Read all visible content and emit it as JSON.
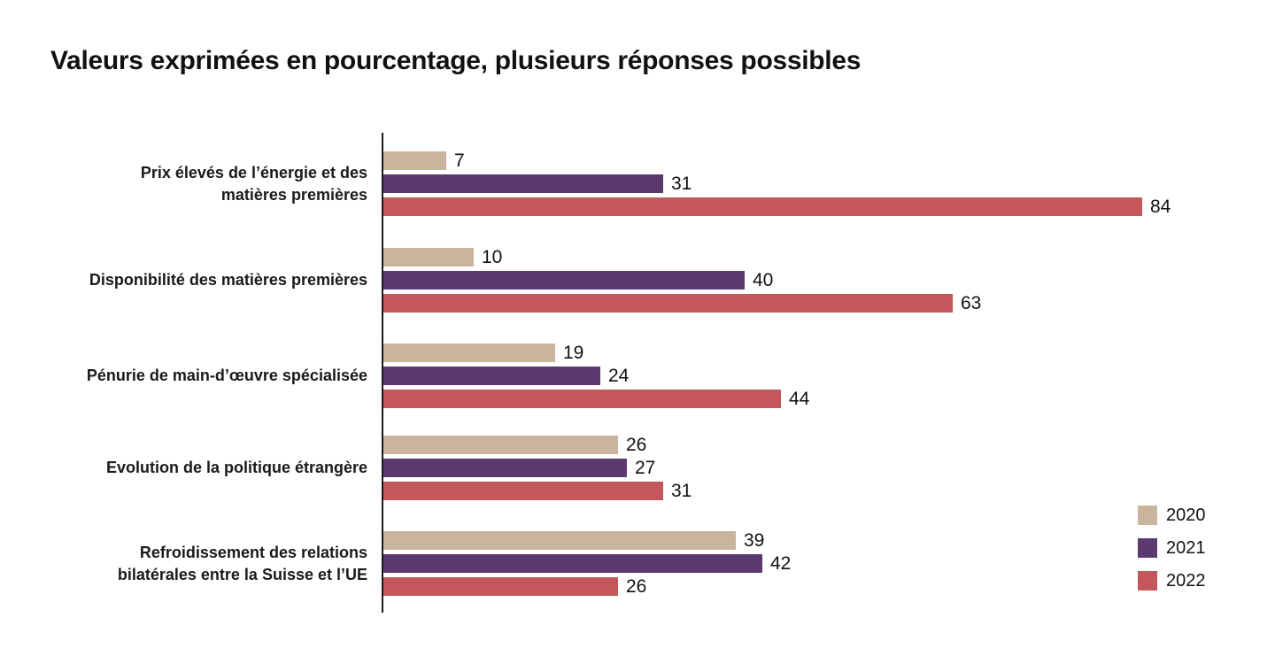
{
  "title": "Valeurs exprimées en pourcentage, plusieurs réponses possibles",
  "colors": {
    "series2020": "#C9B49D",
    "series2021": "#5B3A70",
    "series2022": "#C4575C",
    "axis": "#1A1A1A",
    "text": "#111111"
  },
  "legend": {
    "position": "bottom-right",
    "items": [
      {
        "label": "2020",
        "color": "#C9B49D"
      },
      {
        "label": "2021",
        "color": "#5B3A70"
      },
      {
        "label": "2022",
        "color": "#C4575C"
      }
    ]
  },
  "chart_data": {
    "type": "bar",
    "orientation": "horizontal",
    "title": "Valeurs exprimées en pourcentage, plusieurs réponses possibles",
    "unit": "percent",
    "grid": false,
    "data_labels": true,
    "legend_position": "bottom-right",
    "xlim": [
      0,
      100
    ],
    "categories": [
      "Prix élevés de l’énergie et des matières premières",
      "Disponibilité des matières premières",
      "Pénurie de main-d’œuvre spécialisée",
      "Evolution de la politique étrangère",
      "Refroidissement des relations bilatérales entre la Suisse et l’UE"
    ],
    "category_lines": [
      [
        "Prix élevés de l’énergie et des",
        "matières premières"
      ],
      [
        "Disponibilité des matières premières"
      ],
      [
        "Pénurie de main-d’œuvre spécialisée"
      ],
      [
        "Evolution de la politique étrangère"
      ],
      [
        "Refroidissement des relations",
        "bilatérales entre la Suisse et l’UE"
      ]
    ],
    "series": [
      {
        "name": "2020",
        "color": "#C9B49D",
        "values": [
          7,
          10,
          19,
          26,
          39
        ]
      },
      {
        "name": "2021",
        "color": "#5B3A70",
        "values": [
          31,
          40,
          24,
          27,
          42
        ]
      },
      {
        "name": "2022",
        "color": "#C4575C",
        "values": [
          84,
          63,
          44,
          31,
          26
        ]
      }
    ]
  }
}
